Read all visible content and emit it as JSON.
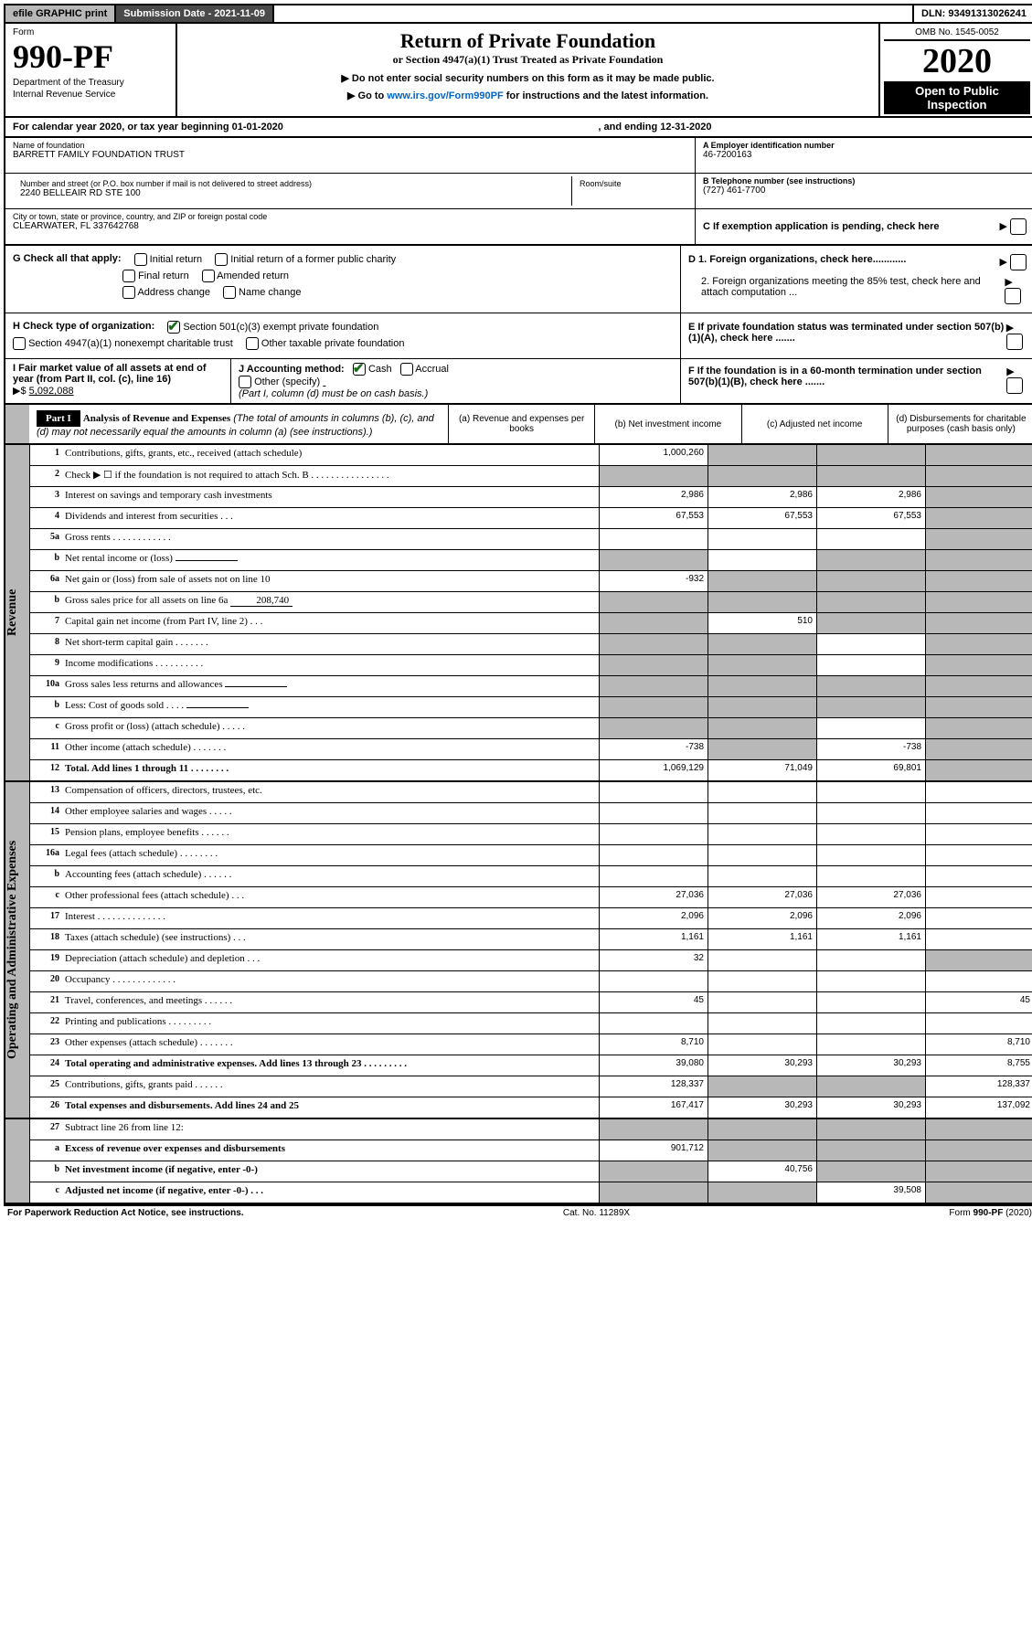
{
  "topbar": {
    "efile": "efile GRAPHIC print",
    "subdate": "Submission Date - 2021-11-09",
    "dln": "DLN: 93491313026241"
  },
  "header": {
    "form_label": "Form",
    "form_num": "990-PF",
    "dept1": "Department of the Treasury",
    "dept2": "Internal Revenue Service",
    "title": "Return of Private Foundation",
    "subtitle": "or Section 4947(a)(1) Trust Treated as Private Foundation",
    "instr1": "▶ Do not enter social security numbers on this form as it may be made public.",
    "instr2_pre": "▶ Go to ",
    "instr2_link": "www.irs.gov/Form990PF",
    "instr2_post": " for instructions and the latest information.",
    "omb": "OMB No. 1545-0052",
    "year": "2020",
    "open1": "Open to Public",
    "open2": "Inspection"
  },
  "cal": {
    "begin": "For calendar year 2020, or tax year beginning 01-01-2020",
    "end": ", and ending 12-31-2020"
  },
  "info": {
    "name_lbl": "Name of foundation",
    "name": "BARRETT FAMILY FOUNDATION TRUST",
    "addr_lbl": "Number and street (or P.O. box number if mail is not delivered to street address)",
    "addr": "2240 BELLEAIR RD STE 100",
    "room_lbl": "Room/suite",
    "city_lbl": "City or town, state or province, country, and ZIP or foreign postal code",
    "city": "CLEARWATER, FL  337642768",
    "a_lbl": "A Employer identification number",
    "a_val": "46-7200163",
    "b_lbl": "B Telephone number (see instructions)",
    "b_val": "(727) 461-7700",
    "c_lbl": "C If exemption application is pending, check here"
  },
  "checks": {
    "g_lbl": "G Check all that apply:",
    "g1": "Initial return",
    "g2": "Initial return of a former public charity",
    "g3": "Final return",
    "g4": "Amended return",
    "g5": "Address change",
    "g6": "Name change",
    "h_lbl": "H Check type of organization:",
    "h1": "Section 501(c)(3) exempt private foundation",
    "h2": "Section 4947(a)(1) nonexempt charitable trust",
    "h3": "Other taxable private foundation",
    "i_lbl": "I Fair market value of all assets at end of year (from Part II, col. (c), line 16)",
    "i_val": "5,092,088",
    "j_lbl": "J Accounting method:",
    "j1": "Cash",
    "j2": "Accrual",
    "j3": "Other (specify)",
    "j_note": "(Part I, column (d) must be on cash basis.)",
    "d1": "D 1. Foreign organizations, check here............",
    "d2": "2. Foreign organizations meeting the 85% test, check here and attach computation ...",
    "e": "E  If private foundation status was terminated under section 507(b)(1)(A), check here .......",
    "f": "F  If the foundation is in a 60-month termination under section 507(b)(1)(B), check here ......."
  },
  "part1": {
    "hdr": "Part I",
    "title": "Analysis of Revenue and Expenses",
    "note": " (The total of amounts in columns (b), (c), and (d) may not necessarily equal the amounts in column (a) (see instructions).)",
    "col_a": "(a)   Revenue and expenses per books",
    "col_b": "(b)   Net investment income",
    "col_c": "(c)   Adjusted net income",
    "col_d": "(d)   Disbursements for charitable purposes (cash basis only)"
  },
  "side_rev": "Revenue",
  "side_exp": "Operating and Administrative Expenses",
  "rows_rev": [
    {
      "n": "1",
      "d": "Contributions, gifts, grants, etc., received (attach schedule)",
      "a": "1,000,260",
      "bs": true,
      "cs": true,
      "ds": true
    },
    {
      "n": "2",
      "d": "Check ▶ ☐ if the foundation is not required to attach Sch. B     .  .  .  .  .  .  .  .  .  .  .  .  .  .  .  .",
      "bs": true,
      "cs": true,
      "ds": true,
      "noa": true
    },
    {
      "n": "3",
      "d": "Interest on savings and temporary cash investments",
      "a": "2,986",
      "b": "2,986",
      "c": "2,986",
      "ds": true
    },
    {
      "n": "4",
      "d": "Dividends and interest from securities    .   .   .",
      "a": "67,553",
      "b": "67,553",
      "c": "67,553",
      "ds": true
    },
    {
      "n": "5a",
      "d": "Gross rents     .   .   .   .   .   .   .   .   .   .   .   .",
      "ds": true
    },
    {
      "n": "b",
      "d": "Net rental income or (loss)",
      "inline": "",
      "as": true,
      "cs": true,
      "ds": true
    },
    {
      "n": "6a",
      "d": "Net gain or (loss) from sale of assets not on line 10",
      "a": "-932",
      "bs": true,
      "cs": true,
      "ds": true
    },
    {
      "n": "b",
      "d": "Gross sales price for all assets on line 6a",
      "inline": "208,740",
      "as": true,
      "bs": true,
      "cs": true,
      "ds": true
    },
    {
      "n": "7",
      "d": "Capital gain net income (from Part IV, line 2)   .   .   .",
      "as": true,
      "b": "510",
      "cs": true,
      "ds": true
    },
    {
      "n": "8",
      "d": "Net short-term capital gain   .   .   .   .   .   .   .",
      "as": true,
      "bs": true,
      "ds": true
    },
    {
      "n": "9",
      "d": "Income modifications  .   .   .   .   .   .   .   .   .   .",
      "as": true,
      "bs": true,
      "ds": true
    },
    {
      "n": "10a",
      "d": "Gross sales less returns and allowances",
      "inline": "",
      "as": true,
      "bs": true,
      "cs": true,
      "ds": true
    },
    {
      "n": "b",
      "d": "Less: Cost of goods sold     .   .   .   .",
      "inline": "",
      "as": true,
      "bs": true,
      "cs": true,
      "ds": true
    },
    {
      "n": "c",
      "d": "Gross profit or (loss) (attach schedule)     .   .   .   .   .",
      "as": true,
      "bs": true,
      "ds": true
    },
    {
      "n": "11",
      "d": "Other income (attach schedule)    .   .   .   .   .   .   .",
      "a": "-738",
      "bs": true,
      "c": "-738",
      "ds": true
    },
    {
      "n": "12",
      "d": "Total. Add lines 1 through 11   .   .   .   .   .   .   .   .",
      "bold": true,
      "a": "1,069,129",
      "b": "71,049",
      "c": "69,801",
      "ds": true
    }
  ],
  "rows_exp": [
    {
      "n": "13",
      "d": "Compensation of officers, directors, trustees, etc."
    },
    {
      "n": "14",
      "d": "Other employee salaries and wages    .   .   .   .   ."
    },
    {
      "n": "15",
      "d": "Pension plans, employee benefits  .   .   .   .   .   ."
    },
    {
      "n": "16a",
      "d": "Legal fees (attach schedule)  .   .   .   .   .   .   .   ."
    },
    {
      "n": "b",
      "d": "Accounting fees (attach schedule)  .   .   .   .   .   ."
    },
    {
      "n": "c",
      "d": "Other professional fees (attach schedule)    .   .   .",
      "a": "27,036",
      "b": "27,036",
      "c": "27,036"
    },
    {
      "n": "17",
      "d": "Interest  .   .   .   .   .   .   .   .   .   .   .   .   .   .",
      "a": "2,096",
      "b": "2,096",
      "c": "2,096"
    },
    {
      "n": "18",
      "d": "Taxes (attach schedule) (see instructions)     .   .   .",
      "a": "1,161",
      "b": "1,161",
      "c": "1,161"
    },
    {
      "n": "19",
      "d": "Depreciation (attach schedule) and depletion    .   .   .",
      "a": "32",
      "ds": true
    },
    {
      "n": "20",
      "d": "Occupancy  .   .   .   .   .   .   .   .   .   .   .   .   ."
    },
    {
      "n": "21",
      "d": "Travel, conferences, and meetings  .   .   .   .   .   .",
      "a": "45",
      "dd": "45"
    },
    {
      "n": "22",
      "d": "Printing and publications  .   .   .   .   .   .   .   .   ."
    },
    {
      "n": "23",
      "d": "Other expenses (attach schedule)  .   .   .   .   .   .   .",
      "a": "8,710",
      "dd": "8,710"
    },
    {
      "n": "24",
      "d": "Total operating and administrative expenses.\nAdd lines 13 through 23   .   .   .   .   .   .   .   .   .",
      "bold": true,
      "a": "39,080",
      "b": "30,293",
      "c": "30,293",
      "dd": "8,755"
    },
    {
      "n": "25",
      "d": "Contributions, gifts, grants paid     .   .   .   .   .   .",
      "a": "128,337",
      "bs": true,
      "cs": true,
      "dd": "128,337"
    },
    {
      "n": "26",
      "d": "Total expenses and disbursements. Add lines 24 and 25",
      "bold": true,
      "a": "167,417",
      "b": "30,293",
      "c": "30,293",
      "dd": "137,092"
    }
  ],
  "rows_bottom": [
    {
      "n": "27",
      "d": "Subtract line 26 from line 12:",
      "as": true,
      "bs": true,
      "cs": true,
      "ds": true
    },
    {
      "n": "a",
      "d": "Excess of revenue over expenses and disbursements",
      "bold": true,
      "a": "901,712",
      "bs": true,
      "cs": true,
      "ds": true
    },
    {
      "n": "b",
      "d": "Net investment income (if negative, enter -0-)",
      "bold": true,
      "as": true,
      "b": "40,756",
      "cs": true,
      "ds": true
    },
    {
      "n": "c",
      "d": "Adjusted net income (if negative, enter -0-)   .   .   .",
      "bold": true,
      "as": true,
      "bs": true,
      "c": "39,508",
      "ds": true
    }
  ],
  "footer": {
    "left": "For Paperwork Reduction Act Notice, see instructions.",
    "mid": "Cat. No. 11289X",
    "right": "Form 990-PF (2020)"
  }
}
